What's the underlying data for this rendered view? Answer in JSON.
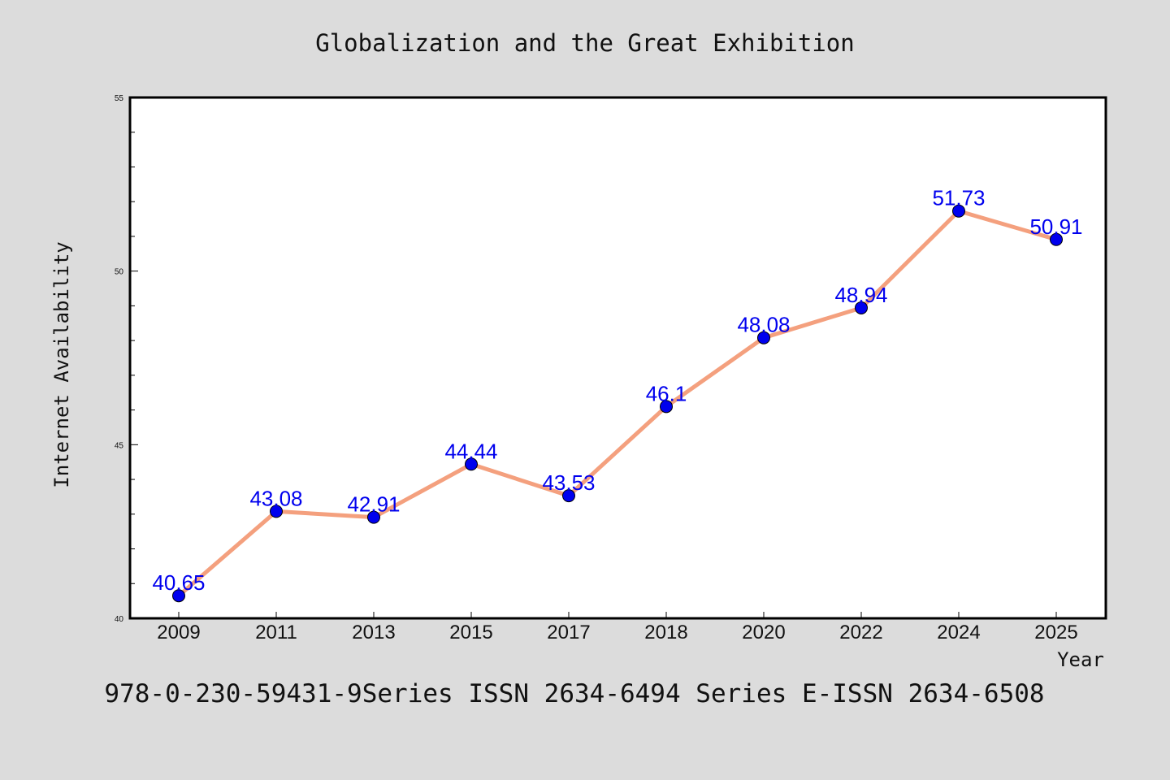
{
  "chart_data": {
    "type": "line",
    "title": "Globalization and the Great Exhibition",
    "xlabel": "Year",
    "ylabel": "Internet Availability",
    "categories": [
      "2009",
      "2011",
      "2013",
      "2015",
      "2017",
      "2018",
      "2020",
      "2022",
      "2024",
      "2025"
    ],
    "series": [
      {
        "values": [
          40.65,
          43.08,
          42.91,
          44.44,
          43.53,
          46.1,
          48.08,
          48.94,
          51.73,
          50.91
        ]
      }
    ],
    "data_labels": [
      "40.65",
      "43.08",
      "42.91",
      "44.44",
      "43.53",
      "46.1",
      "48.08",
      "48.94",
      "51.73",
      "50.91"
    ],
    "ylim": [
      40,
      55
    ],
    "yticks": [
      "40",
      "45",
      "50",
      "55"
    ],
    "grid": false,
    "line_color": "#f4a07e",
    "marker_color": "#0000ee",
    "label_color": "#0000ee",
    "background_color": "#dcdcdc",
    "plot_background": "#ffffff"
  },
  "footer": {
    "text": "978-0-230-59431-9Series ISSN 2634-6494 Series E-ISSN 2634-6508"
  }
}
